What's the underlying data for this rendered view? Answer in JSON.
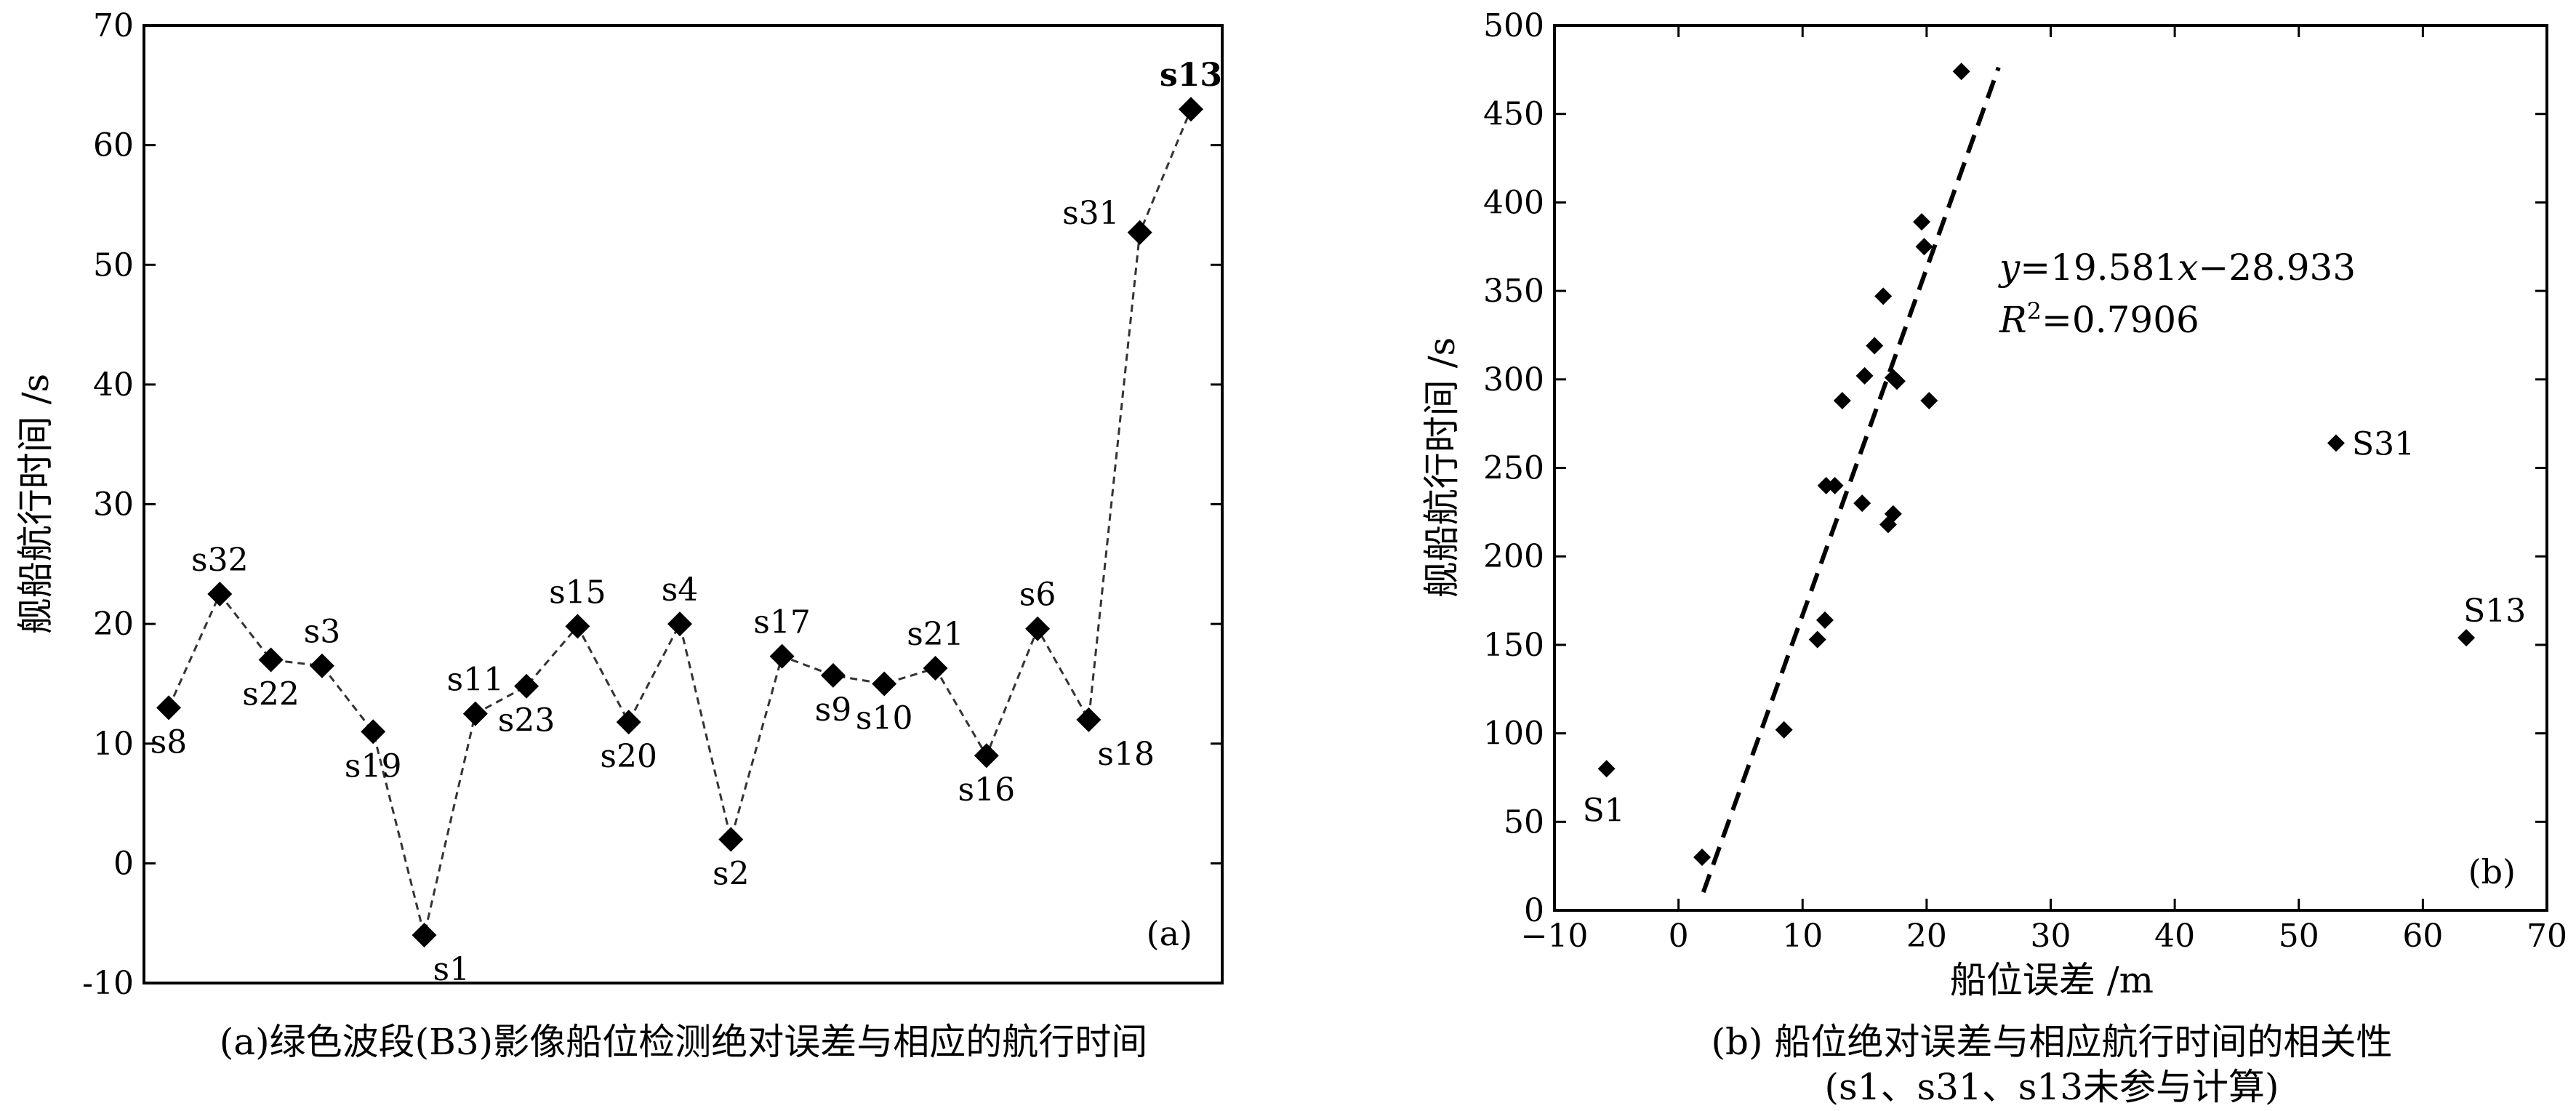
{
  "chart_data": [
    {
      "type": "line",
      "panel_tag": "(a)",
      "caption": "(a)绿色波段(B3)影像船位检测绝对误差与相应的航行时间",
      "ylabel": "舰船航行时间 /s",
      "xlabel": "",
      "ylim": [
        -10,
        70
      ],
      "yticks": [
        -10,
        0,
        10,
        20,
        30,
        40,
        50,
        60,
        70
      ],
      "grid": false,
      "series_style": "dashed line with diamond markers",
      "points": [
        {
          "label": "s8",
          "value": 13,
          "label_pos": "below"
        },
        {
          "label": "s32",
          "value": 22.5,
          "label_pos": "above"
        },
        {
          "label": "s22",
          "value": 17,
          "label_pos": "below"
        },
        {
          "label": "s3",
          "value": 16.5,
          "label_pos": "above"
        },
        {
          "label": "s19",
          "value": 11,
          "label_pos": "below"
        },
        {
          "label": "s1",
          "value": -6,
          "label_pos": "below-right"
        },
        {
          "label": "s11",
          "value": 12.5,
          "label_pos": "above"
        },
        {
          "label": "s23",
          "value": 14.8,
          "label_pos": "below"
        },
        {
          "label": "s15",
          "value": 19.8,
          "label_pos": "above"
        },
        {
          "label": "s20",
          "value": 11.8,
          "label_pos": "below"
        },
        {
          "label": "s4",
          "value": 20,
          "label_pos": "above"
        },
        {
          "label": "s2",
          "value": 2,
          "label_pos": "below"
        },
        {
          "label": "s17",
          "value": 17.3,
          "label_pos": "above"
        },
        {
          "label": "s9",
          "value": 15.7,
          "label_pos": "below"
        },
        {
          "label": "s10",
          "value": 15,
          "label_pos": "below"
        },
        {
          "label": "s21",
          "value": 16.3,
          "label_pos": "above"
        },
        {
          "label": "s16",
          "value": 9,
          "label_pos": "below"
        },
        {
          "label": "s6",
          "value": 19.6,
          "label_pos": "above"
        },
        {
          "label": "s18",
          "value": 12,
          "label_pos": "below-right"
        },
        {
          "label": "s31",
          "value": 52.7,
          "label_pos": "left"
        },
        {
          "label": "s13",
          "value": 63,
          "label_pos": "above"
        }
      ]
    },
    {
      "type": "scatter",
      "panel_tag": "(b)",
      "caption": "(b) 船位绝对误差与相应航行时间的相关性",
      "caption_line2": "(s1、s31、s13未参与计算)",
      "xlabel": "船位误差 /m",
      "ylabel": "舰船航行时间 /s",
      "xlim": [
        -10,
        70
      ],
      "ylim": [
        0,
        500
      ],
      "xticks": [
        -10,
        0,
        10,
        20,
        30,
        40,
        50,
        60,
        70
      ],
      "xtick_labels": [
        "−10",
        "0",
        "10",
        "20",
        "30",
        "40",
        "50",
        "60",
        "70"
      ],
      "yticks": [
        0,
        50,
        100,
        150,
        200,
        250,
        300,
        350,
        400,
        450,
        500
      ],
      "grid": false,
      "equation": {
        "lhs": "y",
        "rhs_a": "=19.581",
        "rhs_b": "x",
        "rhs_c": "−28.933"
      },
      "r2": {
        "prefix": "R",
        "sup": "2",
        "value": "=0.7906"
      },
      "trendline": {
        "slope": 19.581,
        "intercept": -28.933,
        "x_range": [
          2,
          25.8
        ],
        "style": "dashed"
      },
      "points": [
        {
          "x": 1.9,
          "y": 30
        },
        {
          "x": 8.5,
          "y": 102
        },
        {
          "x": 11.2,
          "y": 153
        },
        {
          "x": 11.8,
          "y": 164
        },
        {
          "x": 11.9,
          "y": 240
        },
        {
          "x": 12.6,
          "y": 240
        },
        {
          "x": 13.2,
          "y": 288
        },
        {
          "x": 14.8,
          "y": 230
        },
        {
          "x": 15.0,
          "y": 302
        },
        {
          "x": 15.8,
          "y": 319
        },
        {
          "x": 16.5,
          "y": 347
        },
        {
          "x": 16.9,
          "y": 218
        },
        {
          "x": 17.3,
          "y": 224
        },
        {
          "x": 17.3,
          "y": 301
        },
        {
          "x": 17.6,
          "y": 299
        },
        {
          "x": 19.6,
          "y": 389
        },
        {
          "x": 19.8,
          "y": 375
        },
        {
          "x": 20.2,
          "y": 288
        },
        {
          "x": 22.8,
          "y": 474
        }
      ],
      "excluded_points": [
        {
          "label": "S1",
          "x": -5.8,
          "y": 80
        },
        {
          "label": "S31",
          "x": 53,
          "y": 264
        },
        {
          "label": "S13",
          "x": 63.5,
          "y": 154
        }
      ]
    }
  ]
}
